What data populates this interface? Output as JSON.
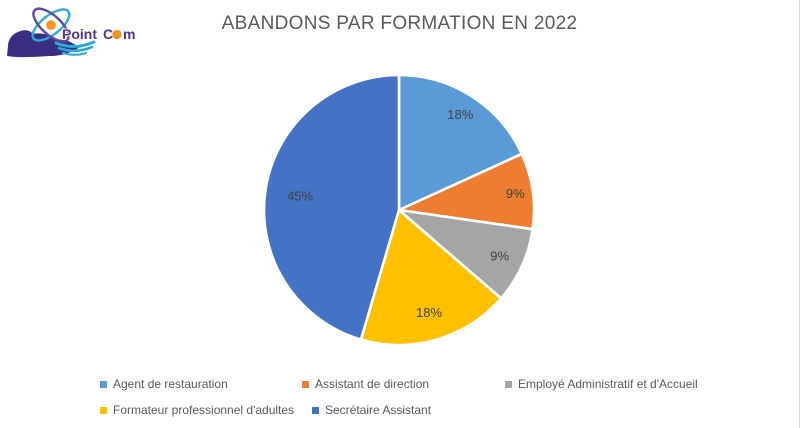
{
  "logo": {
    "brand": "Point Com",
    "text_part1": "Point",
    "text_part2": "C",
    "text_part3": "m",
    "colors": {
      "hand": "#3A2E83",
      "orbit_teal": "#2BA9D8",
      "orbit_purple": "#5C4B9B",
      "nucleus": "#F7941D",
      "text": "#4F3493",
      "o_dot": "#F7941D",
      "swoosh": "#2BA9D8"
    }
  },
  "chart_data": {
    "type": "pie",
    "title": "ABANDONS PAR FORMATION EN 2022",
    "categories": [
      "Agent de restauration",
      "Assistant de direction",
      "Employé Administratif et d'Accueil",
      "Formateur professionnel d'adultes",
      "Secrétaire Assistant"
    ],
    "values": [
      18,
      9,
      9,
      18,
      45
    ],
    "data_labels": [
      "18%",
      "9%",
      "9%",
      "18%",
      "45%"
    ],
    "colors": [
      "#5B9BD5",
      "#ED7D31",
      "#A5A5A5",
      "#FFC000",
      "#4472C4"
    ],
    "slice_border_color": "#FFFFFF",
    "label_color": "#404040",
    "title_color": "#595959",
    "legend_text_color": "#595959",
    "start_angle_deg": 0,
    "direction": "clockwise",
    "legend_position": "bottom"
  }
}
